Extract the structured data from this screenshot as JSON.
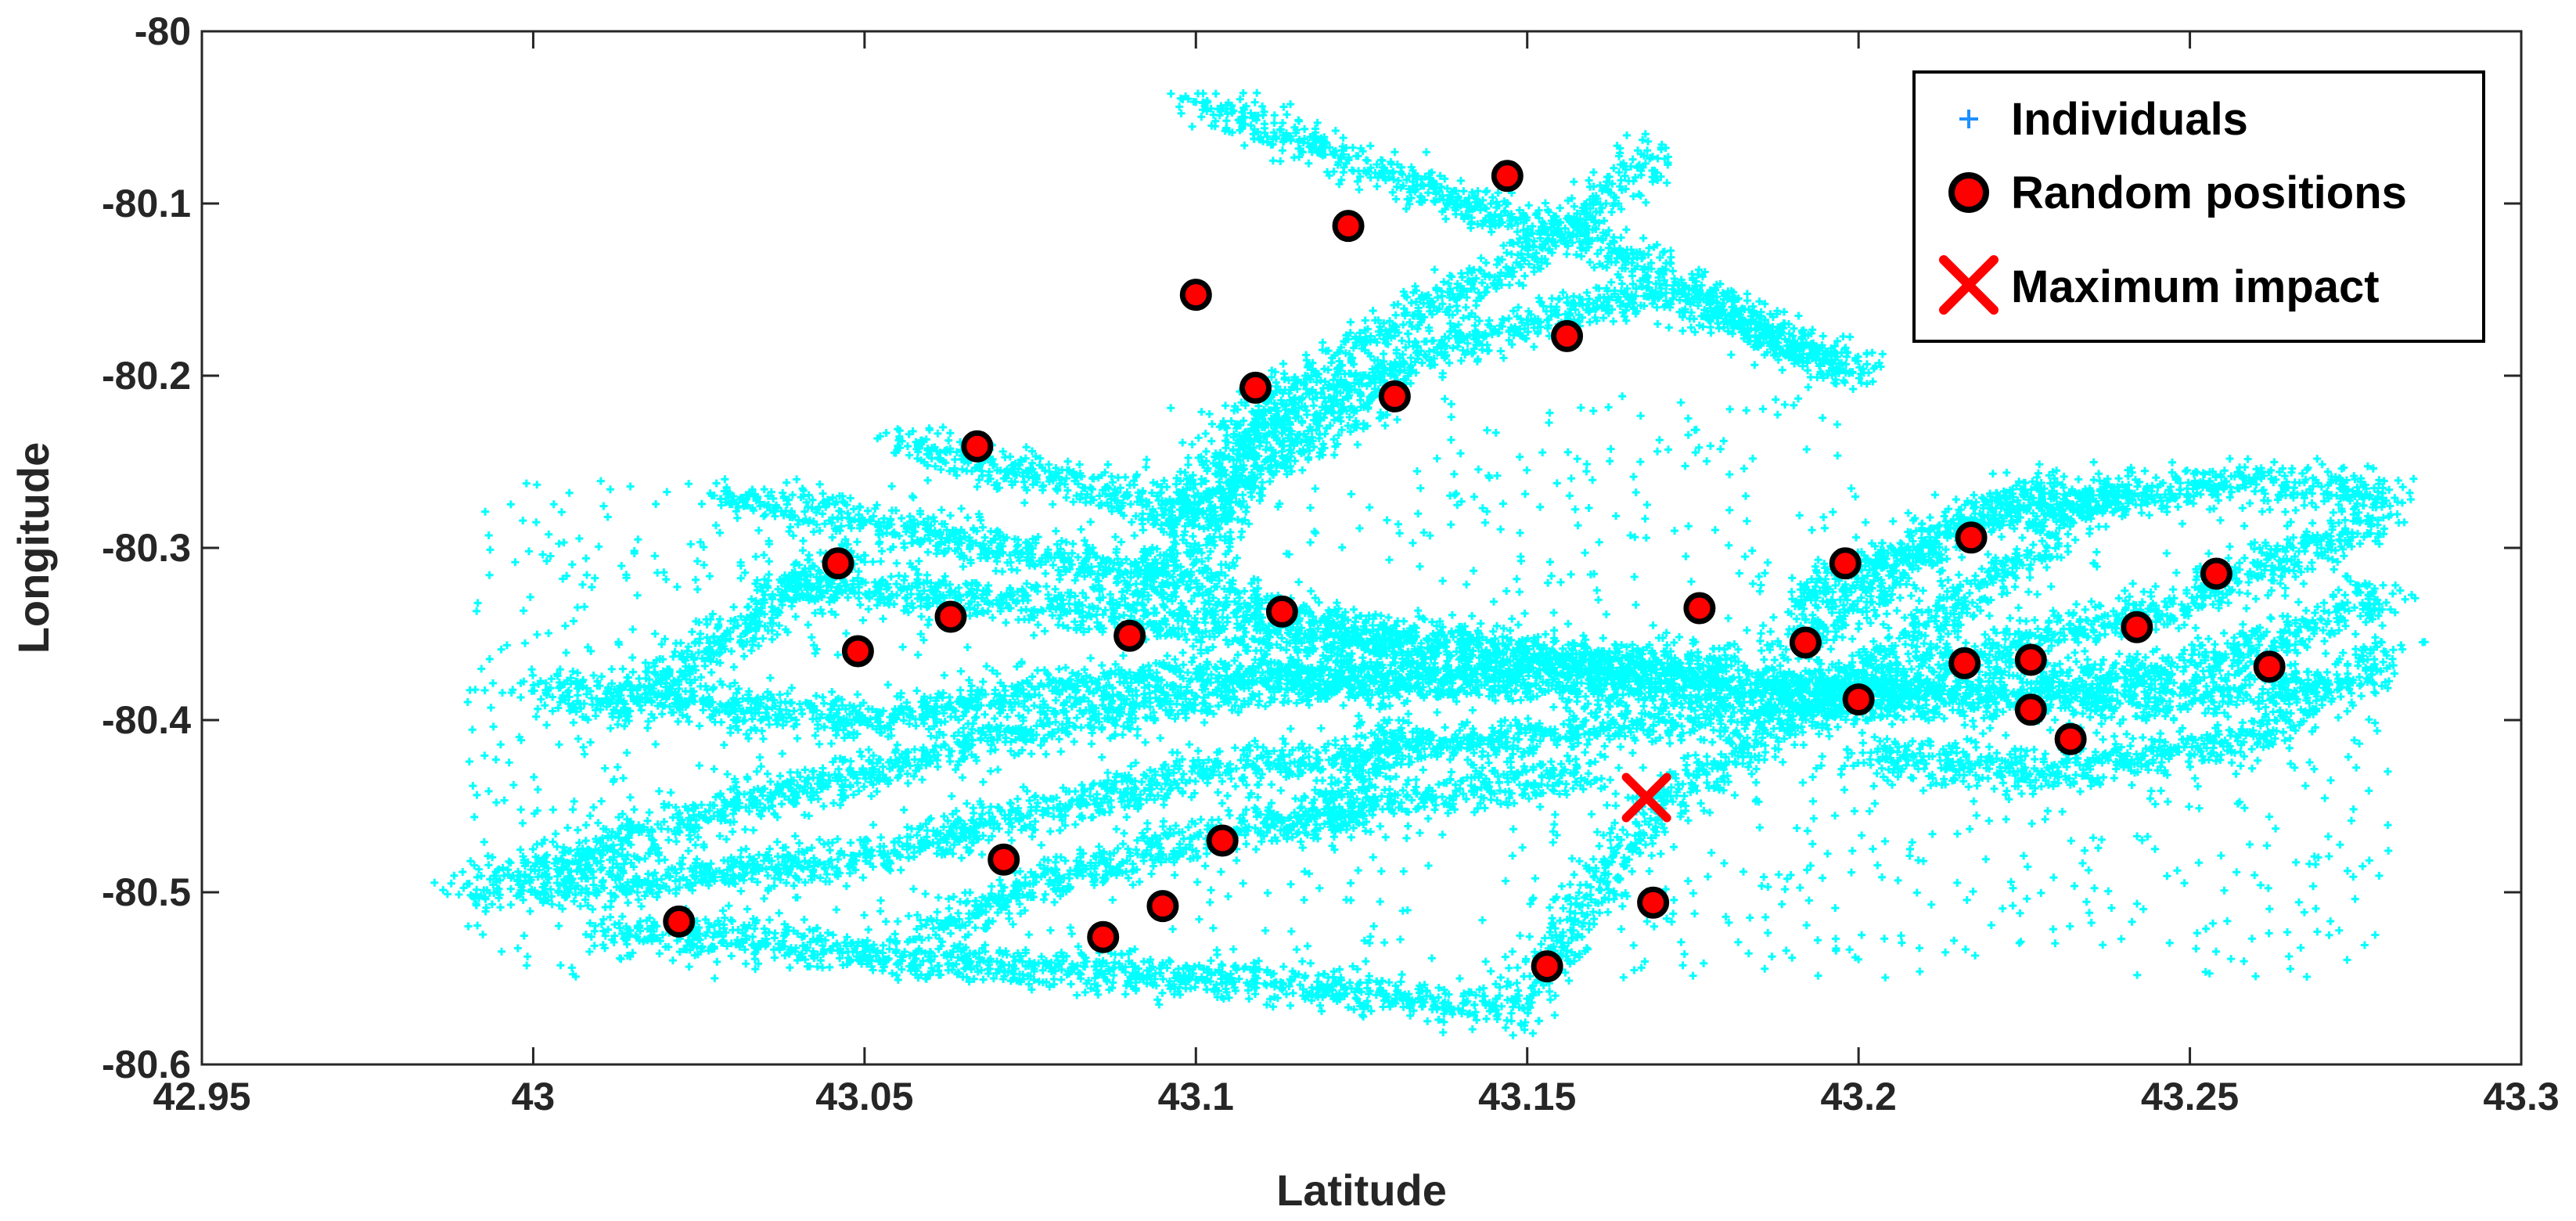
{
  "chart_data": {
    "type": "scatter",
    "xlabel": "Latitude",
    "ylabel": "Longitude",
    "xlim": [
      42.95,
      43.3
    ],
    "ylim": [
      -80.6,
      -80.0
    ],
    "xticks": [
      42.95,
      43.0,
      43.05,
      43.1,
      43.15,
      43.2,
      43.25,
      43.3
    ],
    "xtick_labels": [
      "42.95",
      "43",
      "43.05",
      "43.1",
      "43.15",
      "43.2",
      "43.25",
      "43.3"
    ],
    "yticks": [
      -80.0,
      -80.1,
      -80.2,
      -80.3,
      -80.4,
      -80.5,
      -80.6
    ],
    "ytick_labels": [
      "-80",
      "-80.1",
      "-80.2",
      "-80.3",
      "-80.4",
      "-80.5",
      "-80.6"
    ],
    "grid": false,
    "legend_position": "top-right",
    "series": [
      {
        "name": "Individuals",
        "marker": "plus",
        "color": "#00FFFF",
        "legend_color": "#1E90FF",
        "note_density_paths": true,
        "paths": [
          [
            [
              43.0,
              -80.5
            ],
            [
              43.05,
              -80.48
            ],
            [
              43.1,
              -80.43
            ],
            [
              43.15,
              -80.41
            ],
            [
              43.2,
              -80.39
            ],
            [
              43.25,
              -80.37
            ],
            [
              43.28,
              -80.33
            ]
          ],
          [
            [
              43.0,
              -80.38
            ],
            [
              43.05,
              -80.4
            ],
            [
              43.1,
              -80.37
            ],
            [
              43.15,
              -80.38
            ],
            [
              43.2,
              -80.385
            ],
            [
              43.24,
              -80.39
            ],
            [
              43.27,
              -80.38
            ]
          ],
          [
            [
              43.03,
              -80.27
            ],
            [
              43.07,
              -80.3
            ],
            [
              43.1,
              -80.32
            ],
            [
              43.12,
              -80.345
            ],
            [
              43.16,
              -80.37
            ],
            [
              43.2,
              -80.38
            ],
            [
              43.25,
              -80.33
            ],
            [
              43.28,
              -80.28
            ]
          ],
          [
            [
              43.035,
              -80.32
            ],
            [
              43.07,
              -80.33
            ],
            [
              43.1,
              -80.345
            ],
            [
              43.14,
              -80.36
            ],
            [
              43.18,
              -80.37
            ]
          ],
          [
            [
              43.09,
              -80.33
            ],
            [
              43.1,
              -80.27
            ],
            [
              43.11,
              -80.22
            ],
            [
              43.13,
              -80.17
            ],
            [
              43.15,
              -80.13
            ],
            [
              43.17,
              -80.07
            ]
          ],
          [
            [
              43.1,
              -80.31
            ],
            [
              43.11,
              -80.23
            ],
            [
              43.14,
              -80.18
            ],
            [
              43.17,
              -80.15
            ],
            [
              43.2,
              -80.2
            ]
          ],
          [
            [
              43.1,
              -80.04
            ],
            [
              43.12,
              -80.07
            ],
            [
              43.14,
              -80.1
            ],
            [
              43.16,
              -80.12
            ],
            [
              43.18,
              -80.16
            ],
            [
              43.2,
              -80.2
            ]
          ],
          [
            [
              43.055,
              -80.24
            ],
            [
              43.08,
              -80.26
            ],
            [
              43.1,
              -80.28
            ],
            [
              43.12,
              -80.23
            ],
            [
              43.13,
              -80.2
            ]
          ],
          [
            [
              43.01,
              -80.52
            ],
            [
              43.06,
              -80.54
            ],
            [
              43.1,
              -80.55
            ],
            [
              43.13,
              -80.56
            ],
            [
              43.15,
              -80.57
            ]
          ],
          [
            [
              42.99,
              -80.5
            ],
            [
              43.03,
              -80.45
            ],
            [
              43.07,
              -80.41
            ],
            [
              43.11,
              -80.38
            ],
            [
              43.15,
              -80.375
            ]
          ],
          [
            [
              43.15,
              -80.56
            ],
            [
              43.16,
              -80.5
            ],
            [
              43.17,
              -80.45
            ],
            [
              43.19,
              -80.4
            ],
            [
              43.22,
              -80.32
            ],
            [
              43.24,
              -80.26
            ]
          ],
          [
            [
              43.06,
              -80.52
            ],
            [
              43.08,
              -80.49
            ],
            [
              43.11,
              -80.46
            ],
            [
              43.14,
              -80.44
            ],
            [
              43.16,
              -80.43
            ]
          ],
          [
            [
              43.19,
              -80.36
            ],
            [
              43.21,
              -80.3
            ],
            [
              43.23,
              -80.26
            ]
          ],
          [
            [
              43.2,
              -80.42
            ],
            [
              43.23,
              -80.43
            ],
            [
              43.26,
              -80.41
            ],
            [
              43.28,
              -80.36
            ]
          ],
          [
            [
              43.19,
              -80.33
            ],
            [
              43.22,
              -80.28
            ],
            [
              43.26,
              -80.26
            ],
            [
              43.28,
              -80.27
            ]
          ],
          [
            [
              43.01,
              -80.4
            ],
            [
              43.03,
              -80.35
            ],
            [
              43.05,
              -80.3
            ]
          ],
          [
            [
              43.12,
              -80.47
            ],
            [
              43.125,
              -80.43
            ],
            [
              43.13,
              -80.4
            ]
          ]
        ]
      },
      {
        "name": "Random positions",
        "marker": "circle",
        "color": "#FF0000",
        "edge_color": "#000000",
        "points": [
          [
            43.022,
            -80.517
          ],
          [
            43.046,
            -80.309
          ],
          [
            43.049,
            -80.36
          ],
          [
            43.063,
            -80.34
          ],
          [
            43.067,
            -80.241
          ],
          [
            43.071,
            -80.481
          ],
          [
            43.086,
            -80.526
          ],
          [
            43.09,
            -80.351
          ],
          [
            43.095,
            -80.508
          ],
          [
            43.1,
            -80.153
          ],
          [
            43.104,
            -80.47
          ],
          [
            43.109,
            -80.207
          ],
          [
            43.113,
            -80.337
          ],
          [
            43.123,
            -80.113
          ],
          [
            43.13,
            -80.212
          ],
          [
            43.147,
            -80.084
          ],
          [
            43.153,
            -80.543
          ],
          [
            43.156,
            -80.177
          ],
          [
            43.169,
            -80.506
          ],
          [
            43.176,
            -80.335
          ],
          [
            43.192,
            -80.355
          ],
          [
            43.198,
            -80.309
          ],
          [
            43.2,
            -80.388
          ],
          [
            43.216,
            -80.367
          ],
          [
            43.217,
            -80.294
          ],
          [
            43.226,
            -80.365
          ],
          [
            43.226,
            -80.394
          ],
          [
            43.232,
            -80.411
          ],
          [
            43.242,
            -80.346
          ],
          [
            43.254,
            -80.315
          ],
          [
            43.262,
            -80.369
          ]
        ]
      },
      {
        "name": "Maximum impact",
        "marker": "x",
        "color": "#FF0000",
        "points": [
          [
            43.168,
            -80.445
          ]
        ]
      }
    ]
  }
}
